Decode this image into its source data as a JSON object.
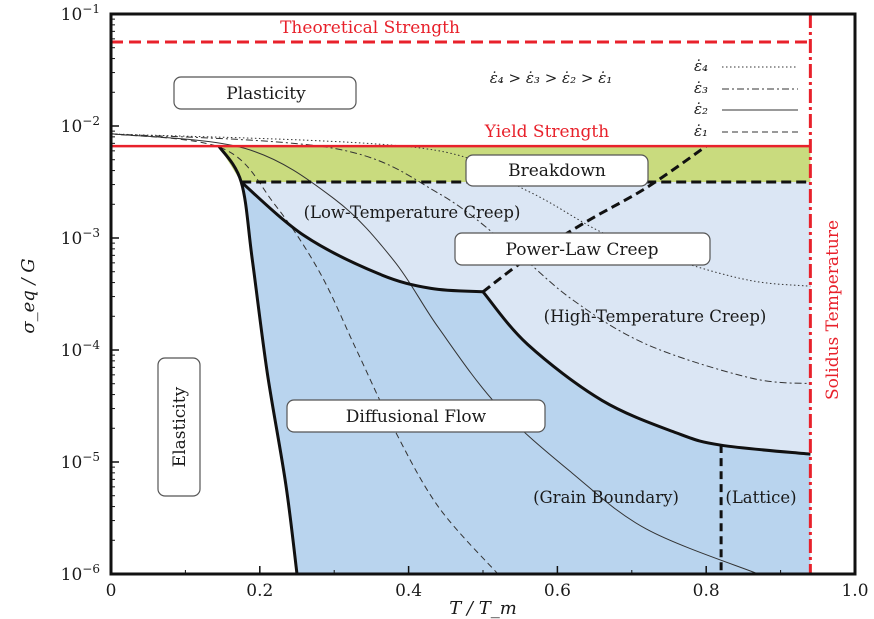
{
  "chart_data": {
    "type": "deformation-mechanism-map",
    "xlabel": "T / T_m",
    "ylabel": "σ_eq / G",
    "xlim": [
      0,
      1.0
    ],
    "ylim_log10": [
      -6,
      -1
    ],
    "y_scale": "log",
    "x_ticks": [
      "0",
      "0.2",
      "0.4",
      "0.6",
      "0.8",
      "1.0"
    ],
    "y_ticks": [
      {
        "base": "10",
        "exp": "−6",
        "value": -6
      },
      {
        "base": "10",
        "exp": "−5",
        "value": -5
      },
      {
        "base": "10",
        "exp": "−4",
        "value": -4
      },
      {
        "base": "10",
        "exp": "−3",
        "value": -3
      },
      {
        "base": "10",
        "exp": "−2",
        "value": -2
      },
      {
        "base": "10",
        "exp": "−1",
        "value": -1
      }
    ],
    "reference_lines": {
      "theoretical_strength": {
        "label": "Theoretical Strength",
        "log10_value": -1.25,
        "color": "#e8212b"
      },
      "yield_strength": {
        "label": "Yield Strength",
        "log10_value": -2.18,
        "color": "#e8212b"
      },
      "solidus": {
        "label": "Solidus Temperature",
        "x": 0.94,
        "color": "#e8212b"
      }
    },
    "region_boxes": [
      {
        "key": "plasticity",
        "label": "Plasticity"
      },
      {
        "key": "breakdown",
        "label": "Breakdown"
      },
      {
        "key": "power_law",
        "label": "Power-Law Creep"
      },
      {
        "key": "diffusional",
        "label": "Diffusional Flow"
      },
      {
        "key": "elasticity",
        "label": "Elasticity"
      }
    ],
    "region_labels": [
      {
        "key": "low_temp",
        "label": "(Low-Temperature Creep)"
      },
      {
        "key": "high_temp",
        "label": "(High-Temperature Creep)"
      },
      {
        "key": "grain_boundary",
        "label": "(Grain Boundary)"
      },
      {
        "key": "lattice",
        "label": "(Lattice)"
      }
    ],
    "strain_rate_inequality": "ε̇₄ > ε̇₃ > ε̇₂ > ε̇₁",
    "legend": [
      {
        "label": "ε̇₄",
        "style": "dotted"
      },
      {
        "label": "ε̇₃",
        "style": "dashdot"
      },
      {
        "label": "ε̇₂",
        "style": "solid"
      },
      {
        "label": "ε̇₁",
        "style": "dashed"
      }
    ],
    "colors": {
      "breakdown_fill": "#c9db7e",
      "creep_fill": "#dbe6f4",
      "diffusion_fill": "#b9d4ee",
      "red": "#e8212b",
      "boundary": "#111111"
    },
    "boundaries": {
      "elastic_boundary": [
        [
          0.145,
          -2.18
        ],
        [
          0.175,
          -2.5
        ],
        [
          0.19,
          -3.2
        ],
        [
          0.21,
          -4.2
        ],
        [
          0.235,
          -5.2
        ],
        [
          0.25,
          -6.0
        ]
      ],
      "low_temp_creep_boundary": [
        [
          0.175,
          -2.5
        ],
        [
          0.26,
          -2.98
        ],
        [
          0.36,
          -3.32
        ],
        [
          0.43,
          -3.45
        ],
        [
          0.5,
          -3.48
        ]
      ],
      "high_temp_creep_boundary": [
        [
          0.5,
          -3.48
        ],
        [
          0.56,
          -3.95
        ],
        [
          0.66,
          -4.45
        ],
        [
          0.76,
          -4.74
        ],
        [
          0.82,
          -4.85
        ],
        [
          0.94,
          -4.93
        ]
      ],
      "power_law_split": [
        [
          0.5,
          -3.48
        ],
        [
          0.56,
          -3.18
        ],
        [
          0.64,
          -2.85
        ],
        [
          0.72,
          -2.55
        ],
        [
          0.8,
          -2.18
        ]
      ],
      "grain_lattice_split": [
        [
          0.82,
          -4.85
        ],
        [
          0.82,
          -6.0
        ]
      ],
      "breakdown_lower": [
        [
          0.175,
          -2.5
        ],
        [
          0.94,
          -2.5
        ]
      ]
    },
    "strain_rate_contours": {
      "e1_dashed": [
        [
          0.0,
          -2.07
        ],
        [
          0.15,
          -2.2
        ],
        [
          0.22,
          -2.7
        ],
        [
          0.28,
          -3.3
        ],
        [
          0.33,
          -4.0
        ],
        [
          0.38,
          -4.7
        ],
        [
          0.44,
          -5.4
        ],
        [
          0.52,
          -6.0
        ]
      ],
      "e2_solid": [
        [
          0.0,
          -2.07
        ],
        [
          0.18,
          -2.2
        ],
        [
          0.3,
          -2.65
        ],
        [
          0.38,
          -3.2
        ],
        [
          0.44,
          -3.8
        ],
        [
          0.52,
          -4.5
        ],
        [
          0.62,
          -5.1
        ],
        [
          0.72,
          -5.6
        ],
        [
          0.87,
          -6.0
        ]
      ],
      "e3_dashdot": [
        [
          0.0,
          -2.07
        ],
        [
          0.3,
          -2.2
        ],
        [
          0.44,
          -2.6
        ],
        [
          0.54,
          -3.1
        ],
        [
          0.62,
          -3.55
        ],
        [
          0.72,
          -3.95
        ],
        [
          0.86,
          -4.25
        ],
        [
          0.94,
          -4.3
        ]
      ],
      "e4_dotted": [
        [
          0.0,
          -2.07
        ],
        [
          0.42,
          -2.2
        ],
        [
          0.56,
          -2.58
        ],
        [
          0.66,
          -2.95
        ],
        [
          0.76,
          -3.2
        ],
        [
          0.86,
          -3.38
        ],
        [
          0.94,
          -3.43
        ]
      ]
    }
  }
}
